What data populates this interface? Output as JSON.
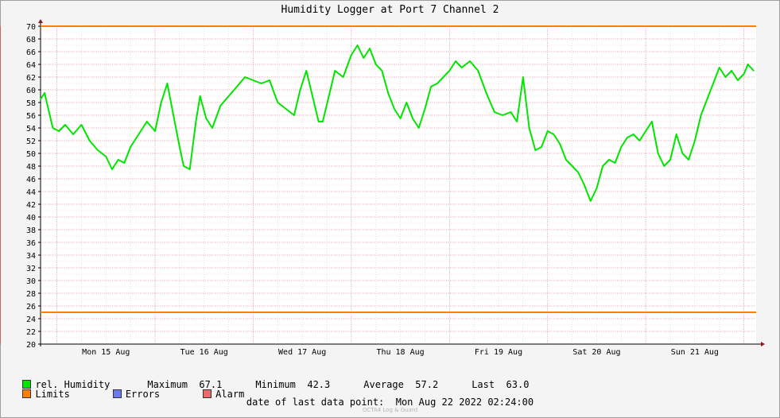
{
  "chart_data": {
    "type": "line",
    "title": "Humidity Logger at Port 7 Channel 2",
    "ylim": [
      20,
      70
    ],
    "yticks": [
      20,
      22,
      24,
      26,
      28,
      30,
      32,
      34,
      36,
      38,
      40,
      42,
      44,
      46,
      48,
      50,
      52,
      54,
      56,
      58,
      60,
      62,
      64,
      66,
      68,
      70
    ],
    "xlim": [
      "Sun Aug 14 2022 20:00",
      "Mon Aug 22 2022 03:00"
    ],
    "x_tick_labels": [
      "Mon 15 Aug",
      "Tue 16 Aug",
      "Wed 17 Aug",
      "Thu 18 Aug",
      "Fri 19 Aug",
      "Sat 20 Aug",
      "Sun 21 Aug"
    ],
    "grid": true,
    "limits": {
      "upper": 70,
      "lower": 25
    },
    "alarm_marker_x": "Wed 17 Aug 2022 00:15",
    "series": [
      {
        "name": "rel. Humidity",
        "color": "#00e600",
        "points": [
          [
            "Sun Aug 14 2022 20:00",
            58.5
          ],
          [
            "Sun Aug 14 2022 21:00",
            59.5
          ],
          [
            "Sun Aug 14 2022 23:00",
            54.0
          ],
          [
            "Mon Aug 15 2022 00:30",
            53.5
          ],
          [
            "Mon Aug 15 2022 02:00",
            54.5
          ],
          [
            "Mon Aug 15 2022 04:00",
            53.0
          ],
          [
            "Mon Aug 15 2022 06:00",
            54.5
          ],
          [
            "Mon Aug 15 2022 08:00",
            52.0
          ],
          [
            "Mon Aug 15 2022 10:00",
            50.5
          ],
          [
            "Mon Aug 15 2022 12:00",
            49.5
          ],
          [
            "Mon Aug 15 2022 13:30",
            47.5
          ],
          [
            "Mon Aug 15 2022 15:00",
            49.0
          ],
          [
            "Mon Aug 15 2022 16:30",
            48.5
          ],
          [
            "Mon Aug 15 2022 18:00",
            51.0
          ],
          [
            "Mon Aug 15 2022 20:00",
            53.0
          ],
          [
            "Mon Aug 15 2022 22:00",
            55.0
          ],
          [
            "Tue Aug 16 2022 00:00",
            53.5
          ],
          [
            "Tue Aug 16 2022 01:30",
            58.0
          ],
          [
            "Tue Aug 16 2022 03:00",
            61.0
          ],
          [
            "Tue Aug 16 2022 04:30",
            56.0
          ],
          [
            "Tue Aug 16 2022 06:00",
            51.0
          ],
          [
            "Tue Aug 16 2022 07:00",
            48.0
          ],
          [
            "Tue Aug 16 2022 08:30",
            47.5
          ],
          [
            "Tue Aug 16 2022 10:00",
            55.0
          ],
          [
            "Tue Aug 16 2022 11:00",
            59.0
          ],
          [
            "Tue Aug 16 2022 12:30",
            55.5
          ],
          [
            "Tue Aug 16 2022 14:00",
            54.0
          ],
          [
            "Tue Aug 16 2022 16:00",
            57.5
          ],
          [
            "Tue Aug 16 2022 18:00",
            59.0
          ],
          [
            "Tue Aug 16 2022 20:00",
            60.5
          ],
          [
            "Tue Aug 16 2022 22:00",
            62.0
          ],
          [
            "Wed Aug 17 2022 00:00",
            61.5
          ],
          [
            "Wed Aug 17 2022 02:00",
            61.0
          ],
          [
            "Wed Aug 17 2022 04:00",
            61.5
          ],
          [
            "Wed Aug 17 2022 06:00",
            58.0
          ],
          [
            "Wed Aug 17 2022 08:00",
            57.0
          ],
          [
            "Wed Aug 17 2022 10:00",
            56.0
          ],
          [
            "Wed Aug 17 2022 11:30",
            60.0
          ],
          [
            "Wed Aug 17 2022 13:00",
            63.0
          ],
          [
            "Wed Aug 17 2022 14:30",
            59.0
          ],
          [
            "Wed Aug 17 2022 16:00",
            55.0
          ],
          [
            "Wed Aug 17 2022 17:00",
            55.0
          ],
          [
            "Wed Aug 17 2022 18:30",
            59.0
          ],
          [
            "Wed Aug 17 2022 20:00",
            63.0
          ],
          [
            "Wed Aug 17 2022 22:00",
            62.0
          ],
          [
            "Thu Aug 18 2022 00:00",
            65.5
          ],
          [
            "Thu Aug 18 2022 01:30",
            67.0
          ],
          [
            "Thu Aug 18 2022 03:00",
            65.0
          ],
          [
            "Thu Aug 18 2022 04:30",
            66.5
          ],
          [
            "Thu Aug 18 2022 06:00",
            64.0
          ],
          [
            "Thu Aug 18 2022 07:30",
            63.0
          ],
          [
            "Thu Aug 18 2022 09:00",
            59.5
          ],
          [
            "Thu Aug 18 2022 10:30",
            57.0
          ],
          [
            "Thu Aug 18 2022 12:00",
            55.5
          ],
          [
            "Thu Aug 18 2022 13:30",
            58.0
          ],
          [
            "Thu Aug 18 2022 15:00",
            55.5
          ],
          [
            "Thu Aug 18 2022 16:30",
            54.0
          ],
          [
            "Thu Aug 18 2022 18:00",
            57.0
          ],
          [
            "Thu Aug 18 2022 19:30",
            60.5
          ],
          [
            "Thu Aug 18 2022 21:00",
            61.0
          ],
          [
            "Thu Aug 18 2022 22:30",
            62.0
          ],
          [
            "Fri Aug 19 2022 00:00",
            63.0
          ],
          [
            "Fri Aug 19 2022 01:30",
            64.5
          ],
          [
            "Fri Aug 19 2022 03:00",
            63.5
          ],
          [
            "Fri Aug 19 2022 05:00",
            64.5
          ],
          [
            "Fri Aug 19 2022 07:00",
            63.0
          ],
          [
            "Fri Aug 19 2022 09:00",
            59.5
          ],
          [
            "Fri Aug 19 2022 11:00",
            56.5
          ],
          [
            "Fri Aug 19 2022 13:00",
            56.0
          ],
          [
            "Fri Aug 19 2022 15:00",
            56.5
          ],
          [
            "Fri Aug 19 2022 16:30",
            55.0
          ],
          [
            "Fri Aug 19 2022 18:00",
            62.0
          ],
          [
            "Fri Aug 19 2022 19:30",
            54.0
          ],
          [
            "Fri Aug 19 2022 21:00",
            50.5
          ],
          [
            "Fri Aug 19 2022 22:30",
            51.0
          ],
          [
            "Sat Aug 20 2022 00:00",
            53.5
          ],
          [
            "Sat Aug 20 2022 01:30",
            53.0
          ],
          [
            "Sat Aug 20 2022 03:00",
            51.5
          ],
          [
            "Sat Aug 20 2022 04:30",
            49.0
          ],
          [
            "Sat Aug 20 2022 06:00",
            48.0
          ],
          [
            "Sat Aug 20 2022 07:30",
            47.0
          ],
          [
            "Sat Aug 20 2022 09:00",
            45.0
          ],
          [
            "Sat Aug 20 2022 10:30",
            42.5
          ],
          [
            "Sat Aug 20 2022 12:00",
            44.5
          ],
          [
            "Sat Aug 20 2022 13:30",
            48.0
          ],
          [
            "Sat Aug 20 2022 15:00",
            49.0
          ],
          [
            "Sat Aug 20 2022 16:30",
            48.5
          ],
          [
            "Sat Aug 20 2022 18:00",
            51.0
          ],
          [
            "Sat Aug 20 2022 19:30",
            52.5
          ],
          [
            "Sat Aug 20 2022 21:00",
            53.0
          ],
          [
            "Sat Aug 20 2022 22:30",
            52.0
          ],
          [
            "Sun Aug 21 2022 00:00",
            53.5
          ],
          [
            "Sun Aug 21 2022 01:30",
            55.0
          ],
          [
            "Sun Aug 21 2022 03:00",
            50.0
          ],
          [
            "Sun Aug 21 2022 04:30",
            48.0
          ],
          [
            "Sun Aug 21 2022 06:00",
            49.0
          ],
          [
            "Sun Aug 21 2022 07:30",
            53.0
          ],
          [
            "Sun Aug 21 2022 09:00",
            50.0
          ],
          [
            "Sun Aug 21 2022 10:30",
            49.0
          ],
          [
            "Sun Aug 21 2022 12:00",
            52.0
          ],
          [
            "Sun Aug 21 2022 13:30",
            56.0
          ],
          [
            "Sun Aug 21 2022 15:00",
            58.5
          ],
          [
            "Sun Aug 21 2022 16:30",
            61.0
          ],
          [
            "Sun Aug 21 2022 18:00",
            63.5
          ],
          [
            "Sun Aug 21 2022 19:30",
            62.0
          ],
          [
            "Sun Aug 21 2022 21:00",
            63.0
          ],
          [
            "Sun Aug 21 2022 22:30",
            61.5
          ],
          [
            "Mon Aug 22 2022 00:00",
            62.5
          ],
          [
            "Mon Aug 22 2022 01:00",
            64.0
          ],
          [
            "Mon Aug 22 2022 02:24",
            63.0
          ]
        ]
      }
    ]
  },
  "legend": {
    "series_name": "rel. Humidity",
    "maximum_label": "Maximum",
    "maximum_value": "67.1",
    "minimum_label": "Minimum",
    "minimum_value": "42.3",
    "average_label": "Average",
    "average_value": "57.2",
    "last_label": "Last",
    "last_value": "63.0",
    "limits_label": "Limits",
    "errors_label": "Errors",
    "alarm_label": "Alarm",
    "colors": {
      "humidity": "#00e600",
      "limits": "#ff7f00",
      "errors": "#6b7bef",
      "alarm": "#ef6b6b"
    }
  },
  "footer": {
    "date_label": "date of last data point:",
    "date_value": "Mon Aug 22 2022 02:24:00"
  },
  "watermark": "OCTA4 Log & Guard"
}
